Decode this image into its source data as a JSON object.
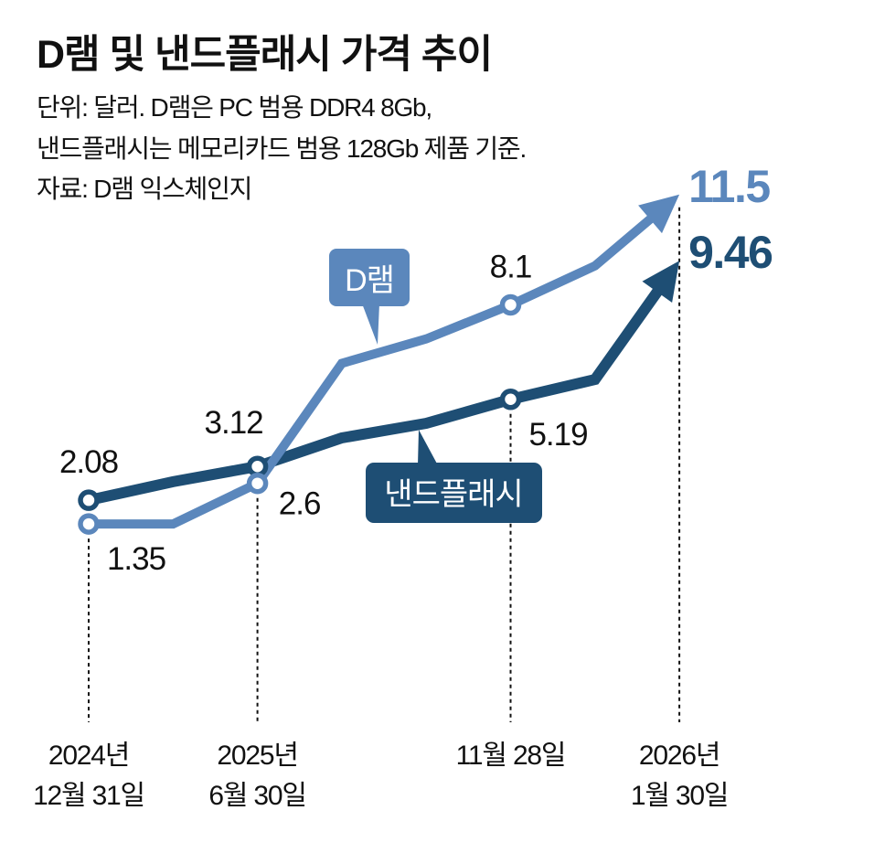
{
  "header": {
    "title": "D램 및 낸드플래시 가격 추이",
    "notes": [
      "단위: 달러. D램은 PC 범용 DDR4 8Gb,",
      "낸드플래시는 메모리카드 범용 128Gb 제품 기준.",
      "자료: D램 익스체인지"
    ]
  },
  "colors": {
    "dram": "#5b87bc",
    "nand": "#1e4e74",
    "text": "#111111",
    "background": "#ffffff"
  },
  "chart_data": {
    "type": "line",
    "title": "D램 및 낸드플래시 가격 추이",
    "unit": "달러",
    "xlabel": "",
    "ylabel": "",
    "ylim": [
      0,
      12
    ],
    "grid": false,
    "y_axis_visible": false,
    "legend": "inline-callouts",
    "categories": [
      "2024년 12월 31일",
      "",
      "2025년 6월 30일",
      "",
      "",
      "11월 28일",
      "",
      "2026년 1월 30일"
    ],
    "x_tick_labels": [
      {
        "index": 0,
        "lines": [
          "2024년",
          "12월 31일"
        ]
      },
      {
        "index": 2,
        "lines": [
          "2025년",
          "6월 30일"
        ]
      },
      {
        "index": 5,
        "lines": [
          "11월 28일"
        ]
      },
      {
        "index": 7,
        "lines": [
          "2026년",
          "1월 30일"
        ]
      }
    ],
    "series": [
      {
        "key": "dram",
        "name": "D램",
        "color": "#5b87bc",
        "values": [
          1.35,
          1.35,
          2.6,
          6.3,
          7.05,
          8.1,
          9.3,
          11.5
        ],
        "data_labels": [
          {
            "index": 0,
            "text": "1.35",
            "position": "below-right"
          },
          {
            "index": 2,
            "text": "2.6",
            "position": "right"
          },
          {
            "index": 5,
            "text": "8.1",
            "position": "above"
          }
        ],
        "end_label": "11.5"
      },
      {
        "key": "nand",
        "name": "낸드플래시",
        "color": "#1e4e74",
        "values": [
          2.08,
          2.65,
          3.12,
          4.0,
          4.45,
          5.19,
          5.8,
          9.46
        ],
        "data_labels": [
          {
            "index": 0,
            "text": "2.08",
            "position": "above"
          },
          {
            "index": 2,
            "text": "3.12",
            "position": "above-left"
          },
          {
            "index": 5,
            "text": "5.19",
            "position": "below-right"
          }
        ],
        "end_label": "9.46"
      }
    ]
  }
}
